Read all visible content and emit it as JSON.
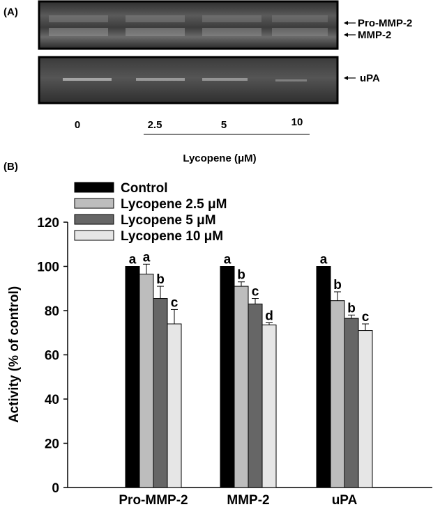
{
  "panel_a": {
    "label": "(A)",
    "band_labels": [
      "Pro-MMP-2",
      "MMP-2",
      "uPA"
    ],
    "lane_labels": [
      "0",
      "2.5",
      "5",
      "10"
    ],
    "treatment_label": "Lycopene (μM)"
  },
  "panel_b": {
    "label": "(B)"
  },
  "chart_data": {
    "type": "bar",
    "title": "",
    "xlabel": "",
    "ylabel": "Activity (% of control)",
    "ylim": [
      0,
      120
    ],
    "yticks": [
      0,
      20,
      40,
      60,
      80,
      100,
      120
    ],
    "grid": false,
    "legend_position": "top-left",
    "categories": [
      "Pro-MMP-2",
      "MMP-2",
      "uPA"
    ],
    "series": [
      {
        "name": "Control",
        "color": "#000000",
        "values": [
          100,
          100,
          100
        ],
        "errors": [
          0,
          0,
          0
        ],
        "letters": [
          "a",
          "a",
          "a"
        ]
      },
      {
        "name": "Lycopene 2.5 μM",
        "color": "#bdbdbd",
        "values": [
          96.5,
          91,
          84.5
        ],
        "errors": [
          4.5,
          2,
          4
        ],
        "letters": [
          "a",
          "b",
          "b"
        ]
      },
      {
        "name": "Lycopene 5 μM",
        "color": "#666666",
        "values": [
          85.5,
          83,
          76.5
        ],
        "errors": [
          5.5,
          2.5,
          1.5
        ],
        "letters": [
          "b",
          "c",
          "b"
        ]
      },
      {
        "name": "Lycopene 10 μM",
        "color": "#e6e6e6",
        "values": [
          74,
          73.5,
          71
        ],
        "errors": [
          6.5,
          1,
          3
        ],
        "letters": [
          "c",
          "d",
          "c"
        ]
      }
    ]
  }
}
